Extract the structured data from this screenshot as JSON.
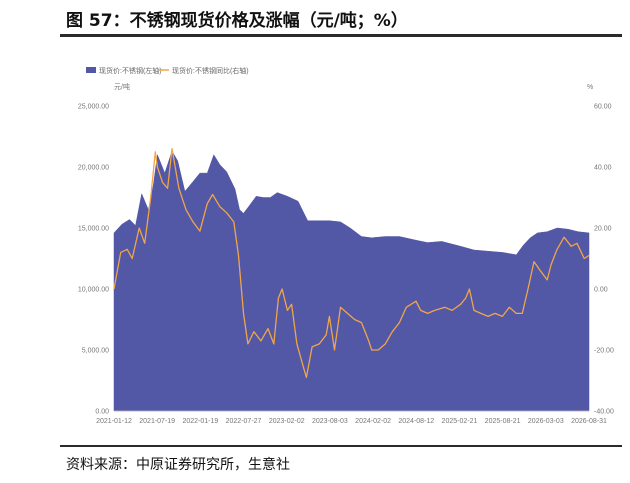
{
  "title": "图 57：不锈钢现货价格及涨幅（元/吨；%）",
  "source": "资料来源：中原证券研究所，生意社",
  "chart_data": {
    "type": "area+line",
    "series": [
      {
        "name": "现货价:不锈钢(左轴)",
        "kind": "area",
        "axis": "left",
        "color": "#5257a6"
      },
      {
        "name": "现货价:不锈钢同比(右轴)",
        "kind": "line",
        "axis": "right",
        "color": "#f0a54a"
      }
    ],
    "left_axis": {
      "unit": "元/吨",
      "ylim": [
        0,
        25000
      ],
      "tick_labels": [
        "0.00",
        "5,000.00",
        "10,000.00",
        "15,000.00",
        "20,000.00",
        "25,000.00"
      ],
      "tick_values": [
        0,
        5000,
        10000,
        15000,
        20000,
        25000
      ]
    },
    "right_axis": {
      "unit": "%",
      "ylim": [
        -40,
        60
      ],
      "tick_labels": [
        "-40.00",
        "-20.00",
        "0.00",
        "20.00",
        "40.00",
        "60.00"
      ],
      "tick_values": [
        -40,
        -20,
        0,
        20,
        40,
        60
      ]
    },
    "x_tick_labels": [
      "2021-01-12",
      "2021-07-19",
      "2022-01-19",
      "2022-07-27",
      "2023-02-02",
      "2023-08-03",
      "2024-02-02",
      "2024-08-12",
      "2025-02-21",
      "2025-08-21",
      "2026-03-03",
      "2026-08-31"
    ],
    "x_range": [
      "2021-01-12",
      "2026-08-31"
    ],
    "price_points": [
      [
        "2021-01-12",
        14600
      ],
      [
        "2021-02-15",
        15300
      ],
      [
        "2021-03-20",
        15700
      ],
      [
        "2021-04-15",
        15200
      ],
      [
        "2021-05-12",
        17800
      ],
      [
        "2021-06-10",
        16500
      ],
      [
        "2021-07-01",
        18500
      ],
      [
        "2021-07-19",
        21000
      ],
      [
        "2021-08-20",
        19500
      ],
      [
        "2021-09-20",
        21300
      ],
      [
        "2021-10-15",
        20500
      ],
      [
        "2021-11-15",
        18000
      ],
      [
        "2021-12-20",
        18800
      ],
      [
        "2022-01-19",
        19500
      ],
      [
        "2022-02-20",
        19500
      ],
      [
        "2022-03-20",
        21000
      ],
      [
        "2022-04-15",
        20200
      ],
      [
        "2022-05-15",
        19600
      ],
      [
        "2022-06-20",
        18200
      ],
      [
        "2022-07-10",
        16500
      ],
      [
        "2022-07-27",
        16200
      ],
      [
        "2022-08-20",
        16800
      ],
      [
        "2022-09-20",
        17600
      ],
      [
        "2022-10-20",
        17500
      ],
      [
        "2022-11-20",
        17500
      ],
      [
        "2022-12-20",
        17900
      ],
      [
        "2023-02-02",
        17600
      ],
      [
        "2023-03-20",
        17200
      ],
      [
        "2023-05-01",
        15600
      ],
      [
        "2023-06-15",
        15600
      ],
      [
        "2023-08-03",
        15600
      ],
      [
        "2023-09-20",
        15500
      ],
      [
        "2023-11-01",
        15000
      ],
      [
        "2023-12-20",
        14300
      ],
      [
        "2024-02-02",
        14200
      ],
      [
        "2024-04-01",
        14300
      ],
      [
        "2024-06-01",
        14300
      ],
      [
        "2024-08-12",
        14000
      ],
      [
        "2024-10-01",
        13800
      ],
      [
        "2024-12-01",
        13900
      ],
      [
        "2025-02-21",
        13500
      ],
      [
        "2025-04-20",
        13200
      ],
      [
        "2025-06-20",
        13100
      ],
      [
        "2025-08-21",
        13000
      ],
      [
        "2025-10-20",
        12800
      ],
      [
        "2025-11-20",
        13600
      ],
      [
        "2025-12-20",
        14200
      ],
      [
        "2026-01-20",
        14600
      ],
      [
        "2026-03-03",
        14700
      ],
      [
        "2026-04-15",
        15000
      ],
      [
        "2026-06-01",
        14900
      ],
      [
        "2026-07-15",
        14700
      ],
      [
        "2026-08-31",
        14600
      ]
    ],
    "yoy_points": [
      [
        "2021-01-12",
        0
      ],
      [
        "2021-02-10",
        12
      ],
      [
        "2021-03-10",
        13
      ],
      [
        "2021-04-01",
        10
      ],
      [
        "2021-05-01",
        20
      ],
      [
        "2021-05-25",
        15
      ],
      [
        "2021-06-20",
        30
      ],
      [
        "2021-07-10",
        45
      ],
      [
        "2021-07-19",
        40
      ],
      [
        "2021-08-10",
        35
      ],
      [
        "2021-09-01",
        33
      ],
      [
        "2021-09-20",
        46
      ],
      [
        "2021-10-20",
        33
      ],
      [
        "2021-11-20",
        26
      ],
      [
        "2021-12-20",
        22
      ],
      [
        "2022-01-19",
        19
      ],
      [
        "2022-02-20",
        28
      ],
      [
        "2022-03-15",
        31
      ],
      [
        "2022-04-15",
        27
      ],
      [
        "2022-05-15",
        25
      ],
      [
        "2022-06-15",
        22
      ],
      [
        "2022-07-05",
        11
      ],
      [
        "2022-07-27",
        -8
      ],
      [
        "2022-08-15",
        -18
      ],
      [
        "2022-09-10",
        -14
      ],
      [
        "2022-10-10",
        -17
      ],
      [
        "2022-11-10",
        -13
      ],
      [
        "2022-12-05",
        -18
      ],
      [
        "2022-12-25",
        -3
      ],
      [
        "2023-01-10",
        0
      ],
      [
        "2023-02-02",
        -7
      ],
      [
        "2023-02-20",
        -5
      ],
      [
        "2023-03-15",
        -18
      ],
      [
        "2023-04-10",
        -25
      ],
      [
        "2023-04-25",
        -29
      ],
      [
        "2023-05-20",
        -19
      ],
      [
        "2023-06-20",
        -18
      ],
      [
        "2023-07-20",
        -15
      ],
      [
        "2023-08-03",
        -9
      ],
      [
        "2023-08-25",
        -20
      ],
      [
        "2023-09-20",
        -6
      ],
      [
        "2023-10-20",
        -8
      ],
      [
        "2023-11-20",
        -10
      ],
      [
        "2023-12-20",
        -11
      ],
      [
        "2024-01-20",
        -17
      ],
      [
        "2024-02-02",
        -20
      ],
      [
        "2024-03-01",
        -20
      ],
      [
        "2024-04-01",
        -18
      ],
      [
        "2024-05-01",
        -14
      ],
      [
        "2024-06-01",
        -11
      ],
      [
        "2024-07-01",
        -6
      ],
      [
        "2024-08-12",
        -4
      ],
      [
        "2024-09-01",
        -7
      ],
      [
        "2024-10-01",
        -8
      ],
      [
        "2024-11-01",
        -7
      ],
      [
        "2024-12-15",
        -6
      ],
      [
        "2025-01-15",
        -7
      ],
      [
        "2025-02-21",
        -5
      ],
      [
        "2025-03-15",
        -3
      ],
      [
        "2025-03-31",
        0
      ],
      [
        "2025-04-20",
        -7
      ],
      [
        "2025-05-20",
        -8
      ],
      [
        "2025-06-20",
        -9
      ],
      [
        "2025-07-20",
        -8
      ],
      [
        "2025-08-21",
        -9
      ],
      [
        "2025-09-20",
        -6
      ],
      [
        "2025-10-20",
        -8
      ],
      [
        "2025-11-15",
        -8
      ],
      [
        "2025-12-10",
        0
      ],
      [
        "2026-01-05",
        9
      ],
      [
        "2026-02-01",
        6
      ],
      [
        "2026-03-03",
        3
      ],
      [
        "2026-03-20",
        8
      ],
      [
        "2026-04-15",
        13
      ],
      [
        "2026-05-15",
        17
      ],
      [
        "2026-06-15",
        14
      ],
      [
        "2026-07-10",
        15
      ],
      [
        "2026-08-10",
        10
      ],
      [
        "2026-08-31",
        11
      ]
    ],
    "legend_position": "top-left",
    "grid": false
  }
}
